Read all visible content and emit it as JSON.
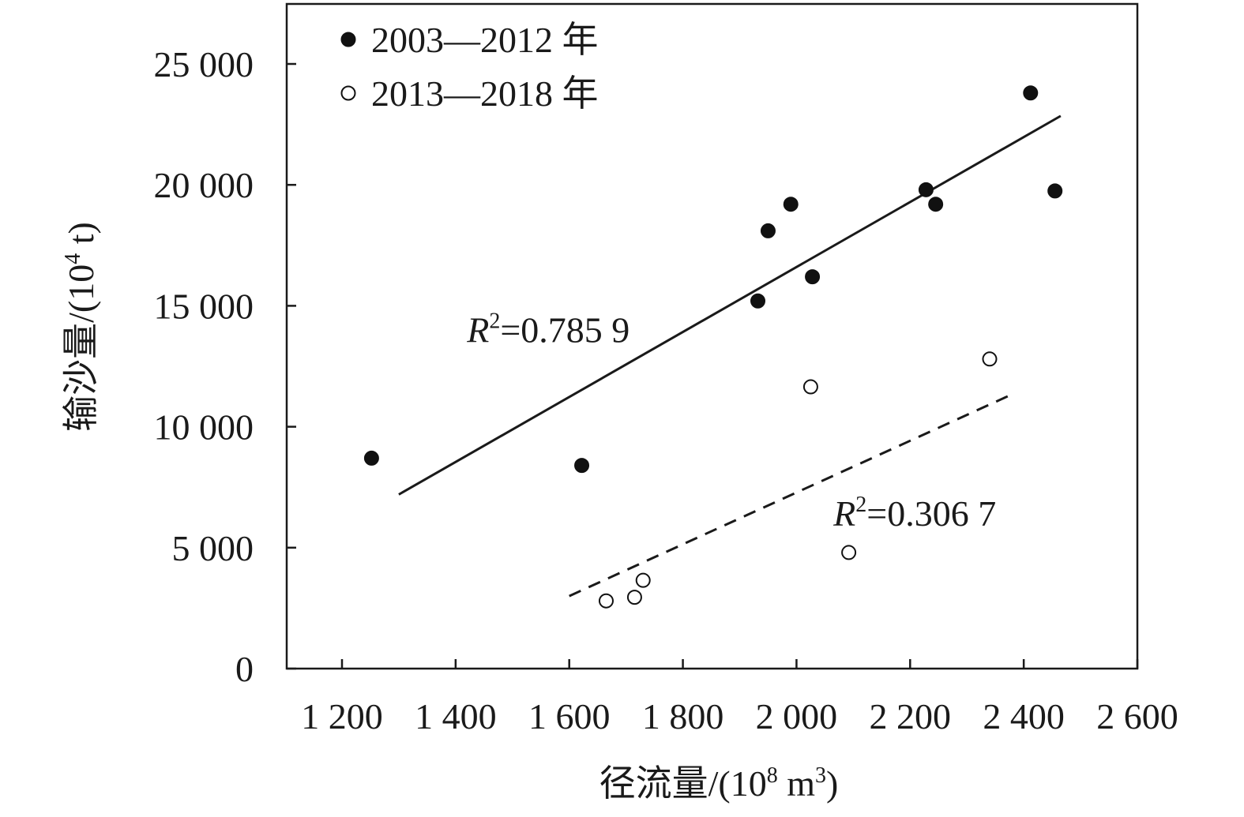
{
  "chart_data": {
    "type": "scatter",
    "title": "",
    "xlabel": {
      "prefix": "径流量/(10",
      "sup": "8",
      "mid": " m",
      "sup2": "3",
      "suffix": ")"
    },
    "ylabel": {
      "prefix": "输沙量/(10",
      "sup": "4",
      "suffix": " t)"
    },
    "xlim": [
      1100,
      2600
    ],
    "ylim": [
      0,
      27500
    ],
    "x_ticks": [
      1200,
      1400,
      1600,
      1800,
      2000,
      2200,
      2400,
      2600
    ],
    "x_tick_labels": [
      "1 200",
      "1 400",
      "1 600",
      "1 800",
      "2 000",
      "2 200",
      "2 400",
      "2 600"
    ],
    "y_ticks": [
      0,
      5000,
      10000,
      15000,
      20000,
      25000
    ],
    "y_tick_labels": [
      "0",
      "5 000",
      "10 000",
      "15 000",
      "20 000",
      "25 000"
    ],
    "grid": false,
    "legend_position": "top-left",
    "series": [
      {
        "name": "2003—2012 年",
        "marker": "filled-circle",
        "color": "#111111",
        "points": [
          {
            "x": 1252,
            "y": 8700
          },
          {
            "x": 1622,
            "y": 8400
          },
          {
            "x": 1932,
            "y": 15200
          },
          {
            "x": 1950,
            "y": 18100
          },
          {
            "x": 1990,
            "y": 19200
          },
          {
            "x": 2028,
            "y": 16200
          },
          {
            "x": 2228,
            "y": 19800
          },
          {
            "x": 2245,
            "y": 19200
          },
          {
            "x": 2412,
            "y": 23800
          },
          {
            "x": 2455,
            "y": 19750
          }
        ],
        "trend": {
          "style": "solid",
          "from": [
            1300,
            7200
          ],
          "to": [
            2465,
            22850
          ]
        },
        "annotation": {
          "prefix": "R",
          "sup": "2",
          "suffix": "=0.785 9",
          "x": 1420,
          "y": 13500
        }
      },
      {
        "name": "2013—2018 年",
        "marker": "open-circle",
        "color": "#111111",
        "points": [
          {
            "x": 1665,
            "y": 2800
          },
          {
            "x": 1715,
            "y": 2950
          },
          {
            "x": 1730,
            "y": 3650
          },
          {
            "x": 2025,
            "y": 11650
          },
          {
            "x": 2092,
            "y": 4800
          },
          {
            "x": 2340,
            "y": 12800
          }
        ],
        "trend": {
          "style": "dashed",
          "from": [
            1600,
            3000
          ],
          "to": [
            2385,
            11400
          ]
        },
        "annotation": {
          "prefix": "R",
          "sup": "2",
          "suffix": "=0.306 7",
          "x": 2065,
          "y": 5900
        }
      }
    ]
  }
}
